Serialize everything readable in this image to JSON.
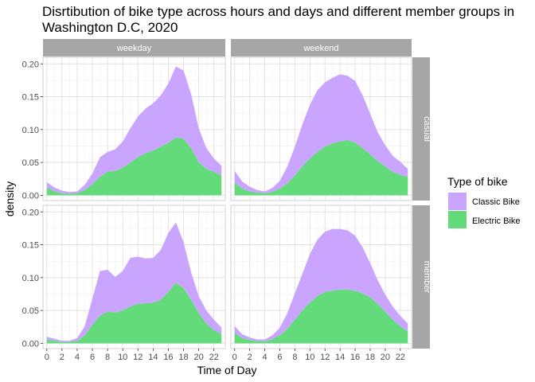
{
  "title": "Disrtibution of bike type across hours and days and different member groups in\nWashington D.C, 2020",
  "colors": {
    "classic": "#c9a5ff",
    "electric": "#63db7b",
    "strip": "#a6a6a6",
    "grid_major": "#e3e3e3",
    "grid_minor": "#f2f2f2",
    "border": "#d2d2d2"
  },
  "chart_data": {
    "type": "area",
    "stacked": true,
    "facets": {
      "columns": [
        "weekday",
        "weekend"
      ],
      "rows": [
        "casual",
        "member"
      ]
    },
    "xlabel": "Time of Day",
    "ylabel": "density",
    "x_ticks": [
      0,
      2,
      4,
      6,
      8,
      10,
      12,
      14,
      16,
      18,
      20,
      22
    ],
    "y_ticks": [
      0.0,
      0.05,
      0.1,
      0.15,
      0.2
    ],
    "y_tick_labels": [
      "0.00",
      "0.05",
      "0.10",
      "0.15",
      "0.20"
    ],
    "xlim": [
      -0.5,
      23.5
    ],
    "ylim": [
      -0.008,
      0.21
    ],
    "legend": {
      "title": "Type of bike",
      "position": "right",
      "entries": [
        "Classic Bike",
        "Electric Bike"
      ]
    },
    "panels": [
      {
        "column": "weekday",
        "row": "casual",
        "x": [
          0,
          1,
          2,
          3,
          4,
          5,
          6,
          7,
          8,
          9,
          10,
          11,
          12,
          13,
          14,
          15,
          16,
          17,
          18,
          19,
          20,
          21,
          22,
          23
        ],
        "electric": [
          0.012,
          0.006,
          0.003,
          0.002,
          0.003,
          0.008,
          0.017,
          0.028,
          0.036,
          0.037,
          0.042,
          0.05,
          0.058,
          0.064,
          0.068,
          0.074,
          0.08,
          0.088,
          0.086,
          0.072,
          0.05,
          0.04,
          0.036,
          0.03
        ],
        "classic": [
          0.008,
          0.006,
          0.004,
          0.003,
          0.003,
          0.008,
          0.016,
          0.03,
          0.03,
          0.033,
          0.04,
          0.052,
          0.062,
          0.068,
          0.072,
          0.078,
          0.09,
          0.108,
          0.104,
          0.082,
          0.052,
          0.032,
          0.02,
          0.015
        ]
      },
      {
        "column": "weekend",
        "row": "casual",
        "x": [
          0,
          1,
          2,
          3,
          4,
          5,
          6,
          7,
          8,
          9,
          10,
          11,
          12,
          13,
          14,
          15,
          16,
          17,
          18,
          19,
          20,
          21,
          22,
          23
        ],
        "electric": [
          0.02,
          0.01,
          0.006,
          0.004,
          0.003,
          0.005,
          0.01,
          0.018,
          0.03,
          0.044,
          0.056,
          0.066,
          0.074,
          0.079,
          0.082,
          0.084,
          0.08,
          0.072,
          0.062,
          0.052,
          0.044,
          0.036,
          0.031,
          0.028
        ],
        "classic": [
          0.017,
          0.011,
          0.007,
          0.004,
          0.003,
          0.006,
          0.012,
          0.026,
          0.044,
          0.064,
          0.082,
          0.094,
          0.098,
          0.1,
          0.102,
          0.098,
          0.094,
          0.08,
          0.062,
          0.044,
          0.032,
          0.024,
          0.02,
          0.012
        ]
      },
      {
        "column": "weekday",
        "row": "member",
        "x": [
          0,
          1,
          2,
          3,
          4,
          5,
          6,
          7,
          8,
          9,
          10,
          11,
          12,
          13,
          14,
          15,
          16,
          17,
          18,
          19,
          20,
          21,
          22,
          23
        ],
        "electric": [
          0.006,
          0.004,
          0.002,
          0.002,
          0.004,
          0.012,
          0.028,
          0.042,
          0.048,
          0.047,
          0.05,
          0.056,
          0.06,
          0.061,
          0.062,
          0.066,
          0.078,
          0.092,
          0.084,
          0.066,
          0.046,
          0.03,
          0.02,
          0.014
        ],
        "classic": [
          0.004,
          0.003,
          0.002,
          0.002,
          0.004,
          0.014,
          0.04,
          0.068,
          0.064,
          0.054,
          0.06,
          0.074,
          0.072,
          0.068,
          0.068,
          0.076,
          0.09,
          0.092,
          0.07,
          0.042,
          0.026,
          0.02,
          0.016,
          0.01
        ]
      },
      {
        "column": "weekend",
        "row": "member",
        "x": [
          0,
          1,
          2,
          3,
          4,
          5,
          6,
          7,
          8,
          9,
          10,
          11,
          12,
          13,
          14,
          15,
          16,
          17,
          18,
          19,
          20,
          21,
          22,
          23
        ],
        "electric": [
          0.016,
          0.008,
          0.005,
          0.003,
          0.003,
          0.006,
          0.012,
          0.022,
          0.036,
          0.05,
          0.062,
          0.072,
          0.078,
          0.08,
          0.082,
          0.082,
          0.08,
          0.076,
          0.07,
          0.06,
          0.048,
          0.036,
          0.026,
          0.018
        ],
        "classic": [
          0.01,
          0.006,
          0.004,
          0.003,
          0.003,
          0.006,
          0.012,
          0.024,
          0.04,
          0.056,
          0.074,
          0.086,
          0.092,
          0.094,
          0.092,
          0.09,
          0.084,
          0.07,
          0.052,
          0.036,
          0.026,
          0.02,
          0.016,
          0.012
        ]
      }
    ]
  }
}
